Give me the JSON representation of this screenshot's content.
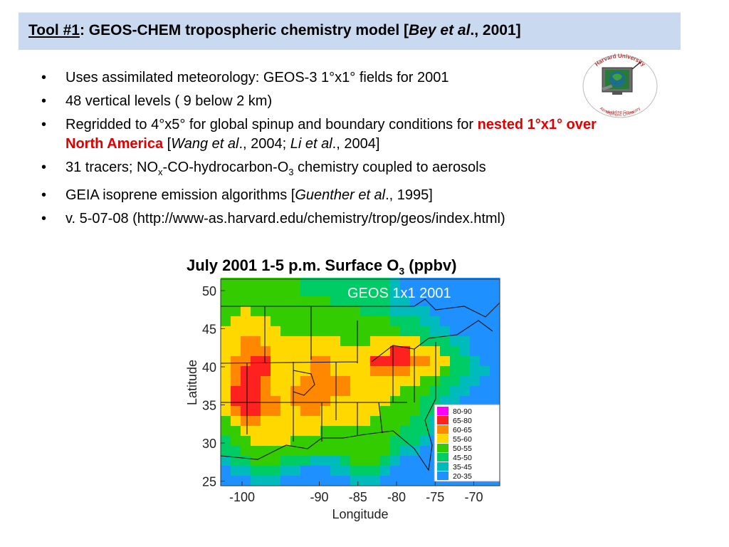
{
  "header": {
    "tool_label": "Tool #1",
    "title_main": ":  GEOS-CHEM tropospheric chemistry model [",
    "title_ref_italic": "Bey et al",
    "title_ref_end": "., 2001]"
  },
  "logo": {
    "top_text": "Harvard University",
    "bottom_text_1": "Atmospheric Chemistry",
    "bottom_text_2": "Modeling Group"
  },
  "bullets": {
    "b1": "Uses assimilated meteorology: GEOS-3 1°x1° fields for 2001",
    "b2": "48 vertical levels ( 9 below 2 km)",
    "b3_a": "Regridded to 4°x5° for global spinup and boundary conditions for ",
    "b3_red": "nested 1°x1° over North America",
    "b3_b": " [",
    "b3_i1": "Wang et al",
    "b3_c": "., 2004; ",
    "b3_i2": "Li et al",
    "b3_d": "., 2004]",
    "b4_a": "31 tracers; NO",
    "b4_sub1": "x",
    "b4_b": "-CO-hydrocarbon-O",
    "b4_sub2": "3",
    "b4_c": " chemistry coupled to aerosols",
    "b5_a": "GEIA isoprene emission algorithms [",
    "b5_i": "Guenther et al",
    "b5_b": "., 1995]",
    "b6": "v. 5-07-08 (http://www-as.harvard.edu/chemistry/trop/geos/index.html)"
  },
  "map": {
    "heading_a": "July 2001 1-5 p.m. Surface O",
    "heading_sub": "3",
    "heading_b": " (ppbv)",
    "inset_label": "GEOS 1x1 2001",
    "x_label": "Longitude",
    "y_label": "Latitude",
    "x_ticks": [
      "-100",
      "-90",
      "-85",
      "-80",
      "-75",
      "-70"
    ],
    "y_ticks": [
      "50",
      "45",
      "40",
      "35",
      "30",
      "25"
    ],
    "legend": [
      {
        "label": "80-90",
        "color": "#ff00ff"
      },
      {
        "label": "65-80",
        "color": "#ff2020"
      },
      {
        "label": "60-65",
        "color": "#ff8800"
      },
      {
        "label": "55-60",
        "color": "#ffd800"
      },
      {
        "label": "50-55",
        "color": "#33cc00"
      },
      {
        "label": "45-50",
        "color": "#00cc66"
      },
      {
        "label": "35-45",
        "color": "#00bbbb"
      },
      {
        "label": "20-35",
        "color": "#1e90ff"
      }
    ]
  }
}
